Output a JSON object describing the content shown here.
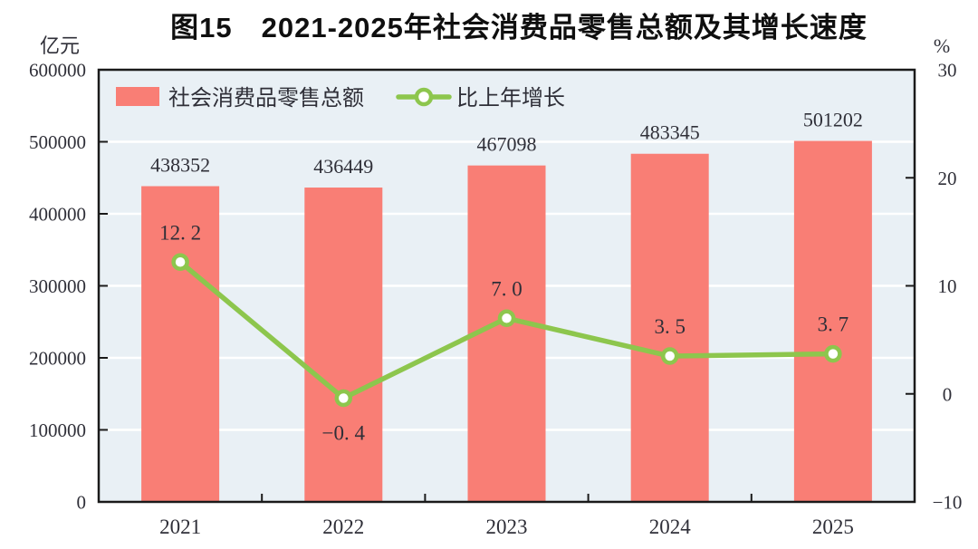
{
  "title": "图15　2021-2025年社会消费品零售总额及其增长速度",
  "left_axis": {
    "unit": "亿元",
    "ticks": [
      {
        "label": "600000",
        "value": 600000
      },
      {
        "label": "500000",
        "value": 500000
      },
      {
        "label": "400000",
        "value": 400000
      },
      {
        "label": "300000",
        "value": 300000
      },
      {
        "label": "200000",
        "value": 200000
      },
      {
        "label": "100000",
        "value": 100000
      },
      {
        "label": "0",
        "value": 0
      }
    ]
  },
  "right_axis": {
    "unit": "%",
    "ticks": [
      {
        "label": "30",
        "value": 30
      },
      {
        "label": "20",
        "value": 20
      },
      {
        "label": "10",
        "value": 10
      },
      {
        "label": "0",
        "value": 0
      },
      {
        "label": "−10",
        "value": -10
      }
    ]
  },
  "legend": {
    "bar_label": "社会消费品零售总额",
    "line_label": "比上年增长"
  },
  "colors": {
    "bar": "#F97E75",
    "line": "#8DC64D",
    "marker_fill": "#FFFFFF",
    "plot_bg": "#E9F0F5",
    "grid": "#FFFFFF",
    "axis_line": "#1A1A1A",
    "text": "#2F2F38"
  },
  "chart_data": {
    "type": "bar",
    "title": "图15 2021-2025年社会消费品零售总额及其增长速度",
    "categories": [
      "2021",
      "2022",
      "2023",
      "2024",
      "2025"
    ],
    "series": [
      {
        "name": "社会消费品零售总额",
        "type": "bar",
        "axis": "left",
        "unit": "亿元",
        "values": [
          438352,
          436449,
          467098,
          483345,
          501202
        ],
        "labels": [
          "438352",
          "436449",
          "467098",
          "483345",
          "501202"
        ]
      },
      {
        "name": "比上年增长",
        "type": "line",
        "axis": "right",
        "unit": "%",
        "values": [
          12.2,
          -0.4,
          7.0,
          3.5,
          3.7
        ],
        "labels": [
          "12. 2",
          "−0. 4",
          "7. 0",
          "3. 5",
          "3. 7"
        ],
        "label_placement": [
          "above",
          "below",
          "above",
          "above",
          "above"
        ]
      }
    ],
    "left_ylim": [
      0,
      600000
    ],
    "right_ylim": [
      -10,
      30
    ],
    "grid": "horizontal",
    "legend_position": "top-left inside plot"
  }
}
